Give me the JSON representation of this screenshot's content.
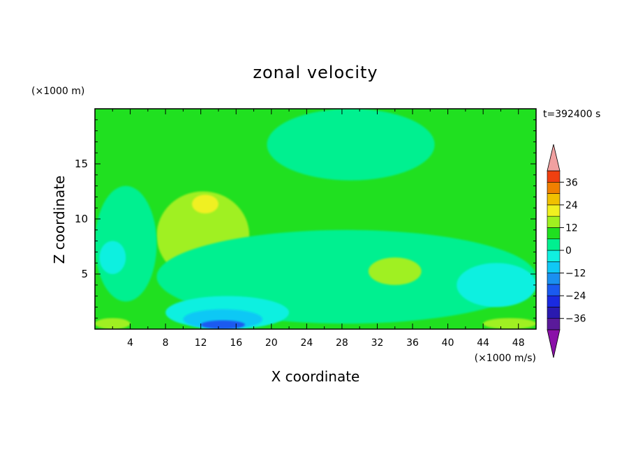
{
  "chart_data": {
    "type": "heatmap",
    "title": "zonal velocity",
    "xlabel": "X coordinate",
    "ylabel": "Z coordinate",
    "x_unit": "(×1000 m/s)",
    "y_unit": "(×1000 m)",
    "time_label": "t=392400 s",
    "xlim": [
      0,
      50
    ],
    "ylim": [
      0,
      20
    ],
    "x_ticks": [
      4,
      8,
      12,
      16,
      20,
      24,
      28,
      32,
      36,
      40,
      44,
      48
    ],
    "y_ticks": [
      5,
      10,
      15
    ],
    "grid": false,
    "colorbar": {
      "labels": [
        "36",
        "24",
        "12",
        "0",
        "-12",
        "-24",
        "-36"
      ],
      "label_values": [
        36,
        24,
        12,
        0,
        -12,
        -24,
        -36
      ],
      "levels": [
        -42,
        -36,
        -30,
        -24,
        -18,
        -12,
        -6,
        0,
        6,
        12,
        18,
        24,
        30,
        36,
        42
      ],
      "colors": [
        "#5a1a9a",
        "#2a1ab0",
        "#1a2ae0",
        "#1a5af0",
        "#1a90f0",
        "#10c8f5",
        "#10f0e0",
        "#00f090",
        "#20e020",
        "#a0f020",
        "#f0f020",
        "#f0c000",
        "#f08000",
        "#f04010",
        "#e01010"
      ],
      "under_color": "#8a10a8",
      "over_color": "#f0a0a0",
      "extend": "both"
    },
    "regions": [
      {
        "level": 0,
        "color": "#20e020",
        "x": [
          0,
          50
        ],
        "z": [
          0,
          20
        ]
      },
      {
        "level": -6,
        "color": "#00f090",
        "x": [
          19.5,
          38.5
        ],
        "z": [
          13.5,
          20
        ]
      },
      {
        "level": 6,
        "color": "#a0f020",
        "x": [
          7,
          17.5
        ],
        "z": [
          4.5,
          12.5
        ]
      },
      {
        "level": 12,
        "color": "#f0f020",
        "x": [
          11,
          14
        ],
        "z": [
          10.5,
          12.2
        ]
      },
      {
        "level": -6,
        "color": "#00f090",
        "x": [
          0,
          7
        ],
        "z": [
          2.5,
          13
        ]
      },
      {
        "level": -12,
        "color": "#10f0e0",
        "x": [
          0.5,
          3.5
        ],
        "z": [
          5,
          8
        ]
      },
      {
        "level": -6,
        "color": "#00f090",
        "x": [
          7,
          50
        ],
        "z": [
          0.5,
          9
        ]
      },
      {
        "level": -12,
        "color": "#10f0e0",
        "x": [
          8,
          22
        ],
        "z": [
          0,
          3
        ]
      },
      {
        "level": -18,
        "color": "#10c8f5",
        "x": [
          10,
          19
        ],
        "z": [
          0,
          1.8
        ]
      },
      {
        "level": -30,
        "color": "#1a5af0",
        "x": [
          12,
          17
        ],
        "z": [
          0,
          0.8
        ]
      },
      {
        "level": 6,
        "color": "#a0f020",
        "x": [
          31,
          37
        ],
        "z": [
          4,
          6.5
        ]
      },
      {
        "level": 6,
        "color": "#a0f020",
        "x": [
          0,
          4
        ],
        "z": [
          0,
          1
        ]
      },
      {
        "level": -12,
        "color": "#10f0e0",
        "x": [
          41,
          50
        ],
        "z": [
          2,
          6
        ]
      },
      {
        "level": 6,
        "color": "#a0f020",
        "x": [
          44,
          50
        ],
        "z": [
          0,
          1
        ]
      }
    ]
  }
}
